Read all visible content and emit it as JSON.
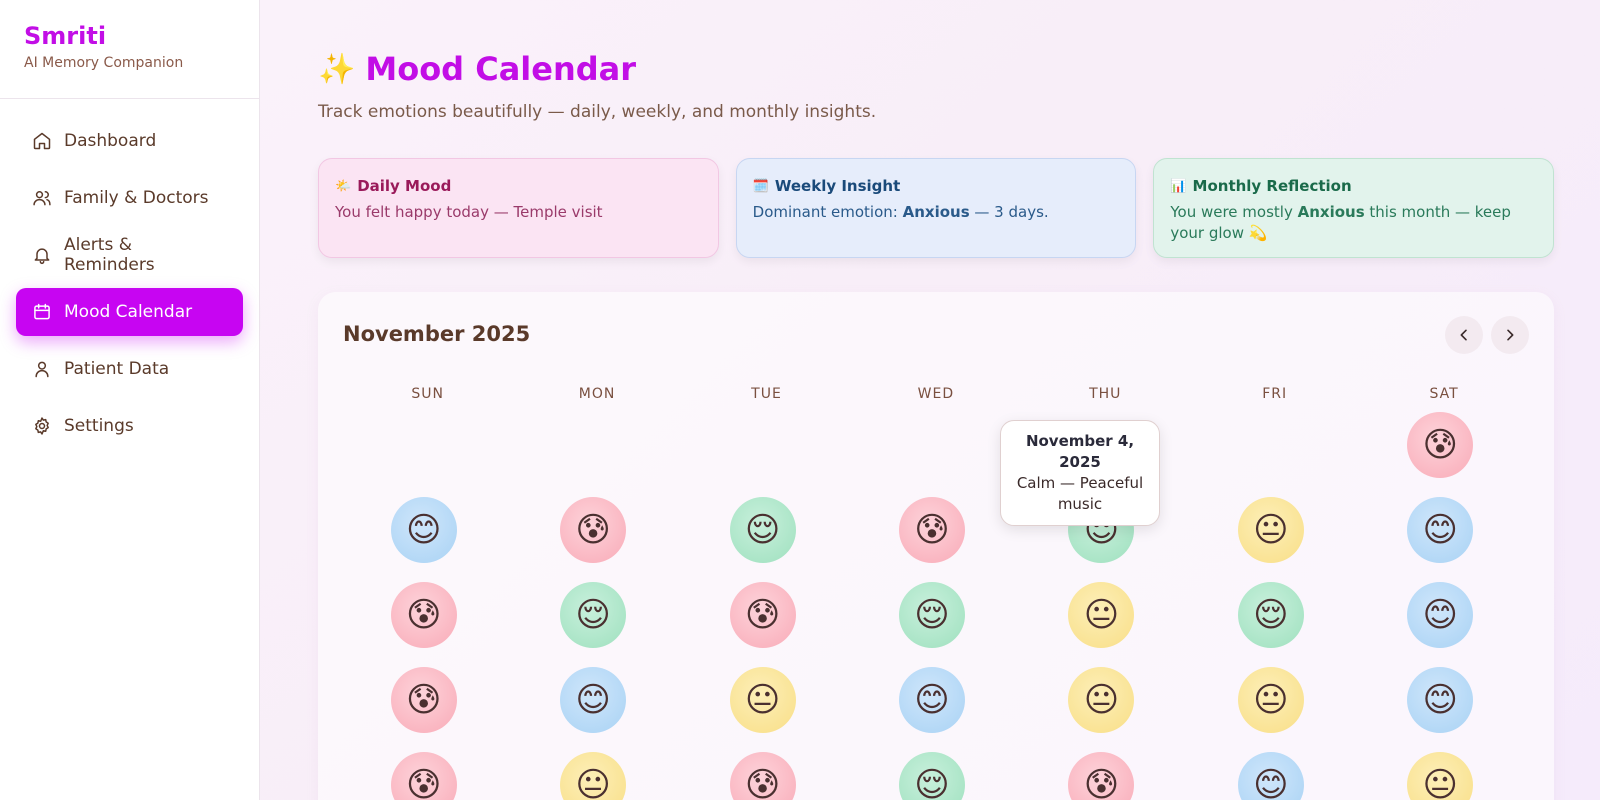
{
  "brand": {
    "name": "Smriti",
    "tagline": "AI Memory Companion"
  },
  "nav": [
    {
      "label": "Dashboard",
      "icon": "home-icon"
    },
    {
      "label": "Family & Doctors",
      "icon": "users-icon"
    },
    {
      "label": "Alerts & Reminders",
      "icon": "bell-icon"
    },
    {
      "label": "Mood Calendar",
      "icon": "calendar-icon",
      "active": true
    },
    {
      "label": "Patient Data",
      "icon": "user-icon"
    },
    {
      "label": "Settings",
      "icon": "gear-icon"
    }
  ],
  "page": {
    "title_icon": "✨",
    "title": "Mood Calendar",
    "subtitle": "Track emotions beautifully — daily, weekly, and monthly insights."
  },
  "cards": {
    "daily": {
      "icon": "🌤️",
      "title": "Daily Mood",
      "text": "You felt happy today — Temple visit"
    },
    "weekly": {
      "icon": "🗓️",
      "title": "Weekly Insight",
      "text_pre": "Dominant emotion: ",
      "emotion": "Anxious",
      "text_post": " — 3 days."
    },
    "monthly": {
      "icon": "📊",
      "title": "Monthly Reflection",
      "text_pre": "You were mostly ",
      "emotion": "Anxious",
      "text_post": " this month — keep your glow 💫"
    }
  },
  "calendar": {
    "month_label": "November 2025",
    "weekdays": [
      "SUN",
      "MON",
      "TUE",
      "WED",
      "THU",
      "FRI",
      "SAT"
    ],
    "first_weekday": 6,
    "moods": [
      "anxious",
      "happy",
      "anxious",
      "calm",
      "anxious",
      "calm",
      "neutral",
      "happy",
      "anxious",
      "calm",
      "anxious",
      "calm",
      "neutral",
      "calm",
      "happy",
      "anxious",
      "happy",
      "neutral",
      "happy",
      "neutral",
      "neutral",
      "happy",
      "anxious",
      "neutral",
      "anxious",
      "calm",
      "anxious",
      "happy",
      "neutral"
    ],
    "tooltip": {
      "date": "November 4, 2025",
      "text": "Calm — Peaceful music"
    }
  },
  "mood_emoji": {
    "happy": "😊",
    "anxious": "😰",
    "calm": "😌",
    "neutral": "😐"
  }
}
